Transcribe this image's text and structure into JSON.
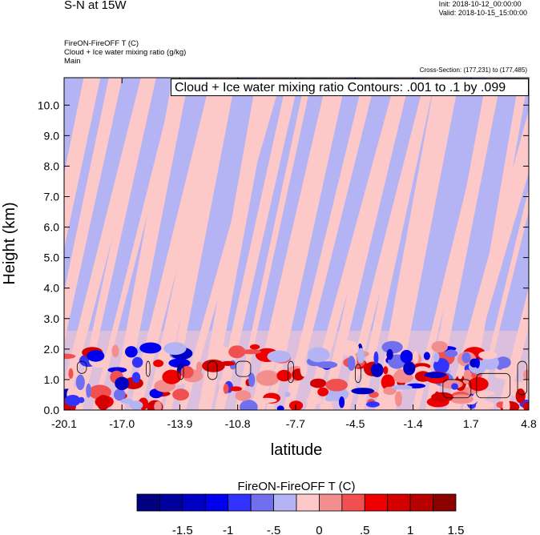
{
  "header": {
    "title": "S-N at 15W",
    "init": "Init: 2018-10-12_00:00:00",
    "valid": "Valid: 2018-10-15_15:00:00",
    "field_line1": "FireON-FireOFF T   (C)",
    "field_line2": "Cloud + Ice water mixing ratio   (g/kg)",
    "field_line3": "Main",
    "cross_section": "Cross-Section: (177,231) to (177,485)",
    "contour_label": "Cloud + Ice water mixing ratio Contours: .001 to .1 by .099"
  },
  "chart_data": {
    "type": "heatmap",
    "xlabel": "latitude",
    "ylabel": "Height (km)",
    "xlim": [
      -20.1,
      4.8
    ],
    "ylim": [
      0.0,
      10.9
    ],
    "x_ticks": [
      "-20.1",
      "-17.0",
      "-13.9",
      "-10.8",
      "-7.7",
      "-4.5",
      "-1.4",
      "1.7",
      "4.8"
    ],
    "y_ticks": [
      "0.0",
      "1.0",
      "2.0",
      "3.0",
      "4.0",
      "5.0",
      "6.0",
      "7.0",
      "8.0",
      "9.0",
      "10.0"
    ],
    "colorbar": {
      "title": "FireON-FireOFF T  (C)",
      "labels": [
        "-1.5",
        "-1",
        "-.5",
        "0",
        ".5",
        "1",
        "1.5"
      ],
      "colors": [
        "#000080",
        "#00009e",
        "#0000c4",
        "#0000ee",
        "#3333ff",
        "#7070ee",
        "#b4b4f4",
        "#fcc8c8",
        "#f28e8e",
        "#f05050",
        "#ee0000",
        "#d40000",
        "#b80000",
        "#8c0000"
      ]
    },
    "background_colors": {
      "negative": "#b4b4f4",
      "positive": "#fcc8c8"
    },
    "cloud_contours_latitude_height": [
      {
        "x": [
          -19.4,
          -18.9
        ],
        "y": [
          1.2,
          1.6
        ]
      },
      {
        "x": [
          -15.7,
          -15.5
        ],
        "y": [
          1.1,
          1.6
        ]
      },
      {
        "x": [
          -14.0,
          -13.7
        ],
        "y": [
          1.0,
          1.5
        ]
      },
      {
        "x": [
          -12.4,
          -11.9
        ],
        "y": [
          1.0,
          1.6
        ]
      },
      {
        "x": [
          -10.9,
          -10.1
        ],
        "y": [
          1.1,
          1.6
        ]
      },
      {
        "x": [
          -8.1,
          -7.8
        ],
        "y": [
          0.9,
          1.6
        ]
      },
      {
        "x": [
          -4.5,
          -4.2
        ],
        "y": [
          0.9,
          1.5
        ]
      },
      {
        "x": [
          0.2,
          1.7
        ],
        "y": [
          0.4,
          1.0
        ]
      },
      {
        "x": [
          2.0,
          3.8
        ],
        "y": [
          0.4,
          1.2
        ]
      },
      {
        "x": [
          4.2,
          4.7
        ],
        "y": [
          0.5,
          1.6
        ]
      }
    ]
  }
}
